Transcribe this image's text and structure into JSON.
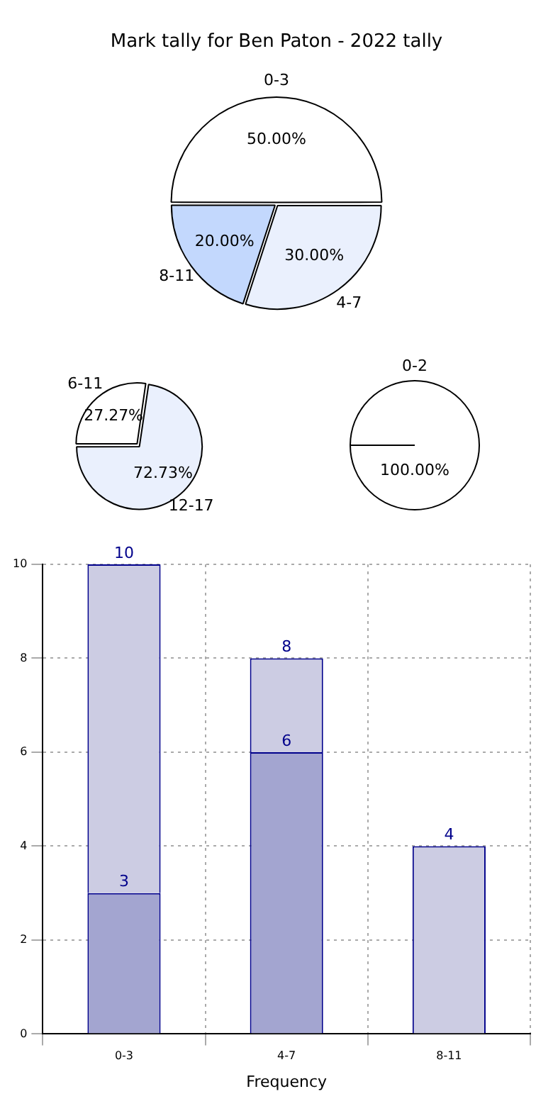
{
  "chart_data": [
    {
      "type": "pie",
      "title": "Mark tally for Ben Paton - 2022 tally",
      "categories": [
        "0-3",
        "4-7",
        "8-11"
      ],
      "values": [
        50,
        30,
        20
      ],
      "value_labels": [
        "50.00%",
        "30.00%",
        "20.00%"
      ],
      "colors": [
        "#ffffff",
        "#eaf0fd",
        "#c3d8fd"
      ]
    },
    {
      "type": "pie",
      "categories": [
        "6-11",
        "12-17"
      ],
      "values": [
        27.27,
        72.73
      ],
      "value_labels": [
        "27.27%",
        "72.73%"
      ],
      "colors": [
        "#ffffff",
        "#eaf0fd"
      ]
    },
    {
      "type": "pie",
      "categories": [
        "0-2"
      ],
      "values": [
        100
      ],
      "value_labels": [
        "100.00%"
      ],
      "colors": [
        "#ffffff"
      ]
    },
    {
      "type": "bar",
      "xlabel": "Frequency",
      "categories": [
        "0-3",
        "4-7",
        "8-11"
      ],
      "series": [
        {
          "color": "#a3a5d0",
          "values": [
            3,
            6,
            null
          ],
          "value_labels": [
            "3",
            "6",
            null
          ]
        },
        {
          "color": "#cccce3",
          "values": [
            7,
            2,
            4
          ]
        }
      ],
      "stacked": true,
      "totals": [
        "10",
        "8",
        "4"
      ],
      "ylim": [
        0,
        10
      ],
      "yticks": [
        0,
        2,
        4,
        6,
        8,
        10
      ],
      "grid": true,
      "legend": false
    }
  ]
}
